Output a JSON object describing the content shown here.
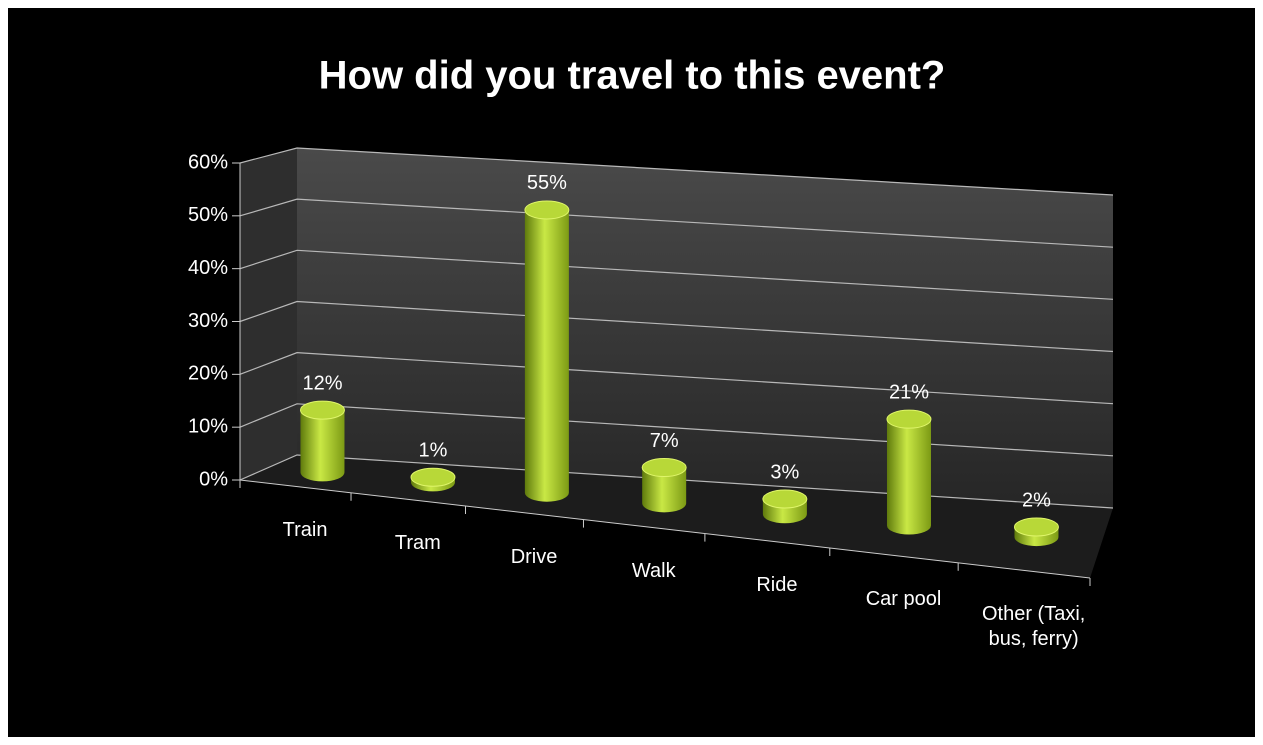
{
  "chart_data": {
    "type": "bar3d",
    "title": "How did you travel to this event?",
    "categories": [
      "Train",
      "Tram",
      "Drive",
      "Walk",
      "Ride",
      "Car pool",
      "Other (Taxi, bus, ferry)"
    ],
    "values": [
      12,
      1,
      55,
      7,
      3,
      21,
      2
    ],
    "value_labels": [
      "12%",
      "1%",
      "55%",
      "7%",
      "3%",
      "21%",
      "2%"
    ],
    "color": "#a6c82a",
    "ylim": [
      0,
      60
    ],
    "yticks": [
      {
        "value": 0,
        "label": "0%"
      },
      {
        "value": 10,
        "label": "10%"
      },
      {
        "value": 20,
        "label": "20%"
      },
      {
        "value": 30,
        "label": "30%"
      },
      {
        "value": 40,
        "label": "40%"
      },
      {
        "value": 50,
        "label": "50%"
      },
      {
        "value": 60,
        "label": "60%"
      }
    ],
    "grid": true
  }
}
